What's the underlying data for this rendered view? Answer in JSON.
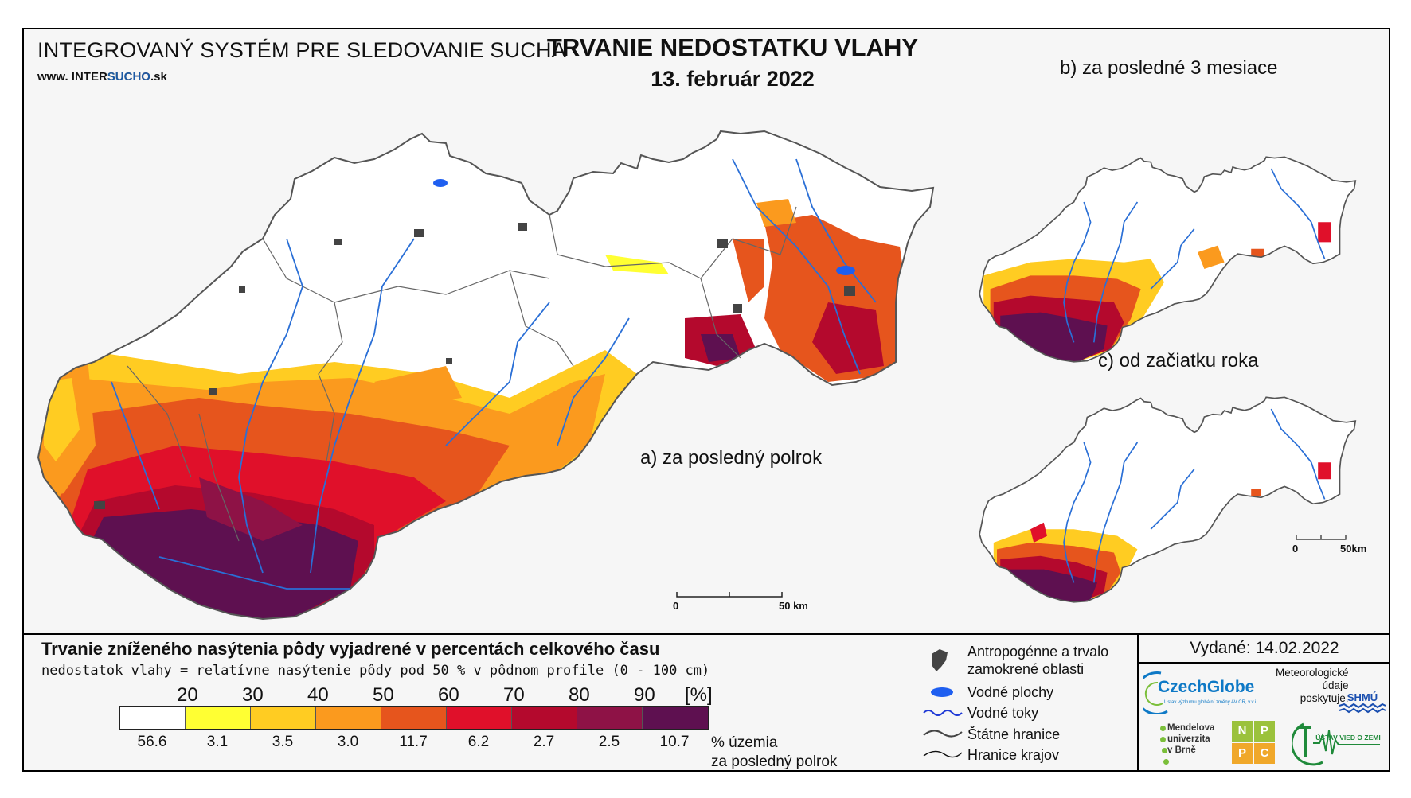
{
  "header": {
    "system_title": "INTEGROVANÝ SYSTÉM PRE SLEDOVANIE SUCHA",
    "url_prefix": "www. INTER",
    "url_mid": "SUCHO",
    "url_suffix": ".sk",
    "main_title": "TRVANIE NEDOSTATKU VLAHY",
    "date": "13. február 2022"
  },
  "maps": {
    "a_label": "a) za posledný polrok",
    "b_label": "b) za posledné 3 mesiace",
    "c_label": "c) od začiatku roka",
    "scale_main": {
      "zero": "0",
      "end": "50 km"
    },
    "scale_small": {
      "zero": "0",
      "end": "50km"
    }
  },
  "legend": {
    "title": "Trvanie zníženého nasýtenia pôdy vyjadrené v percentách celkového času",
    "subtitle": "nedostatok vlahy = relatívne nasýtenie pôdy pod 50 % v pôdnom profile (0 - 100 cm)",
    "ticks": [
      "20",
      "30",
      "40",
      "50",
      "60",
      "70",
      "80",
      "90",
      "[%]"
    ],
    "classes": [
      {
        "color": "#ffffff",
        "share": "56.6"
      },
      {
        "color": "#ffff33",
        "share": "3.1"
      },
      {
        "color": "#ffcc22",
        "share": "3.5"
      },
      {
        "color": "#fb9a1e",
        "share": "3.0"
      },
      {
        "color": "#e6551d",
        "share": "11.7"
      },
      {
        "color": "#e0102a",
        "share": "6.2"
      },
      {
        "color": "#b4092d",
        "share": "2.7"
      },
      {
        "color": "#8e1246",
        "share": "2.5"
      },
      {
        "color": "#5e1050",
        "share": "10.7"
      }
    ],
    "share_note_1": "% územia",
    "share_note_2": "za posledný polrok",
    "symbols": {
      "anthropogenic_1": "Antropogénne a trvalo",
      "anthropogenic_2": "zamokrené oblasti",
      "water_bodies": "Vodné plochy",
      "streams": "Vodné toky",
      "state_border": "Štátne hranice",
      "region_border": "Hranice krajov"
    }
  },
  "footer": {
    "issued": "Vydané: 14.02.2022",
    "czechglobe": "CzechGlobe",
    "czechglobe_small": "Ústav výzkumu globální změny AV ČR, v.v.i.",
    "met_1": "Meteorologické",
    "met_2": "údaje",
    "met_3": "poskytuje:",
    "shmu": "SHMÚ",
    "mendel_1": "Mendelova",
    "mendel_2": "univerzita",
    "mendel_3": "v Brně",
    "nppc": [
      "N",
      "P",
      "P",
      "C"
    ],
    "uvz": "ÚSTAV VIED O ZEMI"
  }
}
